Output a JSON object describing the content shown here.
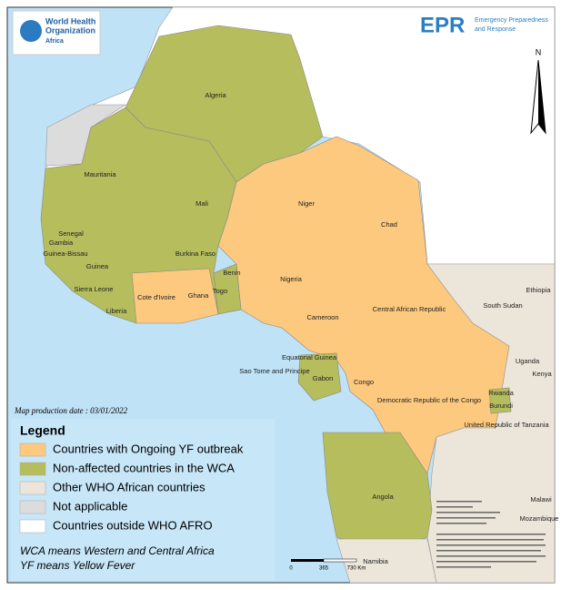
{
  "header": {
    "org_line1": "World Health",
    "org_line2": "Organization",
    "org_region": "Africa",
    "epr_acronym": "EPR",
    "epr_line1": "Emergency Preparedness",
    "epr_line2": "and Response"
  },
  "north_label": "N",
  "map_labels": [
    "Algeria",
    "Mauritania",
    "Mali",
    "Niger",
    "Chad",
    "Senegal",
    "Gambia",
    "Guinea-Bissau",
    "Burkina Faso",
    "Guinea",
    "Benin",
    "Nigeria",
    "Sierra Leone",
    "Togo",
    "Cote d'Ivoire",
    "Ghana",
    "Ethiopia",
    "South Sudan",
    "Central African Republic",
    "Liberia",
    "Cameroon",
    "Equatorial Guinea",
    "Uganda",
    "Sao Tome and Principe",
    "Gabon",
    "Kenya",
    "Congo",
    "Rwanda",
    "Burundi",
    "Democratic Republic of the Congo",
    "United Republic of Tanzania",
    "Angola",
    "Malawi",
    "Mozambique",
    "Namibia"
  ],
  "production_date": "Map production date : 03/01/2022",
  "legend": {
    "title": "Legend",
    "items": [
      {
        "label": "Countries with Ongoing YF outbreak",
        "color": "#fdc97e"
      },
      {
        "label": "Non-affected countries in the WCA",
        "color": "#b6bd5c"
      },
      {
        "label": "Other WHO African countries",
        "color": "#ece5da"
      },
      {
        "label": "Not applicable",
        "color": "#dcdcdc"
      },
      {
        "label": "Countries outside WHO AFRO",
        "color": "#ffffff"
      }
    ]
  },
  "notes": [
    "WCA means Western and Central Africa",
    "YF means Yellow Fever"
  ],
  "scale_bar": {
    "labels": [
      "0",
      "365",
      "730 Km"
    ]
  }
}
